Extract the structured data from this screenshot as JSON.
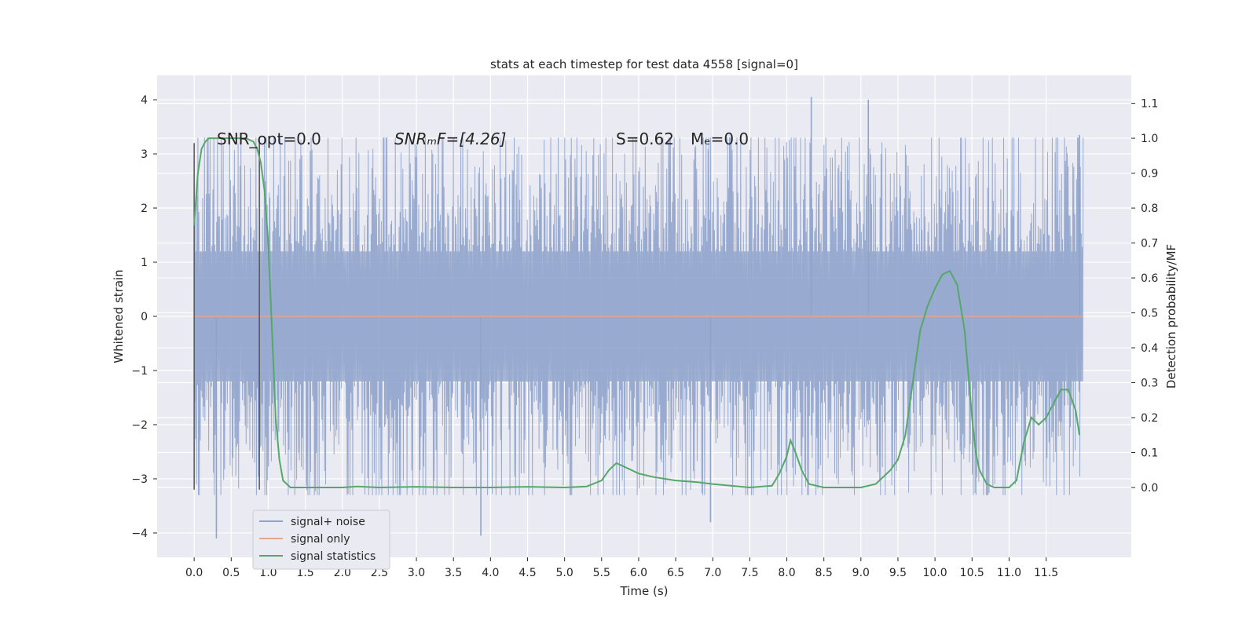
{
  "chart_data": {
    "type": "line",
    "title": "stats at each timestep for test data 4558 [signal=0]",
    "xlabel": "Time (s)",
    "ylabel_left": "Whitened strain",
    "ylabel_right": "Detection probability/MF",
    "xlim": [
      -0.5,
      12.65
    ],
    "ylim_left": [
      -4.45,
      4.45
    ],
    "ylim_right": [
      -0.2,
      1.18
    ],
    "x_ticks": [
      "0.0",
      "0.5",
      "1.0",
      "1.5",
      "2.0",
      "2.5",
      "3.0",
      "3.5",
      "4.0",
      "4.5",
      "5.0",
      "5.5",
      "6.0",
      "6.5",
      "7.0",
      "7.5",
      "8.0",
      "8.5",
      "9.0",
      "9.5",
      "10.0",
      "10.5",
      "11.0",
      "11.5"
    ],
    "y_ticks_left": [
      "4",
      "3",
      "2",
      "1",
      "0",
      "−1",
      "−2",
      "−3",
      "−4"
    ],
    "y_ticks_right": [
      "1.1",
      "1.0",
      "0.9",
      "0.8",
      "0.7",
      "0.6",
      "0.5",
      "0.4",
      "0.3",
      "0.2",
      "0.1",
      "0.0"
    ],
    "grid": true,
    "legend_position": "lower-left",
    "annotations": {
      "snr_opt": "SNR_opt=0.0",
      "snr_mf": "SNRₘF=[4.26]",
      "stat": "S=0.62",
      "mc": "Mₑ=0.0"
    },
    "markers": {
      "x": [
        0.0,
        0.88
      ],
      "y_range": [
        -3.2,
        3.2
      ]
    },
    "series": [
      {
        "name": "signal+ noise",
        "axis": "left",
        "color": "#8fa3cb",
        "x_range": [
          0.0,
          12.0
        ],
        "amplitude_envelope": [
          3.3,
          4.1
        ],
        "peaks": [
          {
            "x": 8.33,
            "y": 4.05
          },
          {
            "x": 9.1,
            "y": 4.0
          },
          {
            "x": 11.95,
            "y": 3.35
          },
          {
            "x": 0.3,
            "y": -4.1
          },
          {
            "x": 3.87,
            "y": -4.05
          },
          {
            "x": 6.97,
            "y": -3.8
          }
        ]
      },
      {
        "name": "signal only",
        "axis": "left",
        "color": "#e5a58c",
        "x": [
          0.0,
          12.0
        ],
        "y": [
          0.0,
          0.0
        ]
      },
      {
        "name": "signal statistics",
        "axis": "right",
        "color": "#55a868",
        "x": [
          0.0,
          0.05,
          0.1,
          0.15,
          0.2,
          0.3,
          0.5,
          0.7,
          0.8,
          0.85,
          0.9,
          0.95,
          1.0,
          1.05,
          1.1,
          1.15,
          1.2,
          1.3,
          1.5,
          2.0,
          2.2,
          2.5,
          3.0,
          3.5,
          4.0,
          4.5,
          5.0,
          5.3,
          5.5,
          5.6,
          5.7,
          5.8,
          6.0,
          6.2,
          6.5,
          6.8,
          7.0,
          7.5,
          7.8,
          7.9,
          8.0,
          8.05,
          8.1,
          8.2,
          8.3,
          8.5,
          9.0,
          9.2,
          9.4,
          9.5,
          9.6,
          9.7,
          9.8,
          9.9,
          10.0,
          10.1,
          10.2,
          10.3,
          10.4,
          10.5,
          10.55,
          10.6,
          10.7,
          10.8,
          11.0,
          11.1,
          11.2,
          11.3,
          11.4,
          11.5,
          11.6,
          11.7,
          11.8,
          11.9,
          11.95
        ],
        "y": [
          0.75,
          0.9,
          0.97,
          0.99,
          1.0,
          1.0,
          1.0,
          1.0,
          0.99,
          0.97,
          0.93,
          0.85,
          0.7,
          0.45,
          0.2,
          0.08,
          0.02,
          0.0,
          0.0,
          0.0,
          0.003,
          0.0,
          0.002,
          0.0,
          0.0,
          0.002,
          0.0,
          0.003,
          0.02,
          0.05,
          0.07,
          0.06,
          0.04,
          0.03,
          0.02,
          0.015,
          0.01,
          0.0,
          0.005,
          0.04,
          0.09,
          0.135,
          0.11,
          0.05,
          0.01,
          0.0,
          0.0,
          0.01,
          0.05,
          0.08,
          0.15,
          0.3,
          0.45,
          0.52,
          0.57,
          0.61,
          0.62,
          0.58,
          0.45,
          0.2,
          0.1,
          0.05,
          0.01,
          0.0,
          0.0,
          0.02,
          0.13,
          0.2,
          0.18,
          0.2,
          0.24,
          0.28,
          0.28,
          0.22,
          0.15
        ]
      }
    ]
  }
}
